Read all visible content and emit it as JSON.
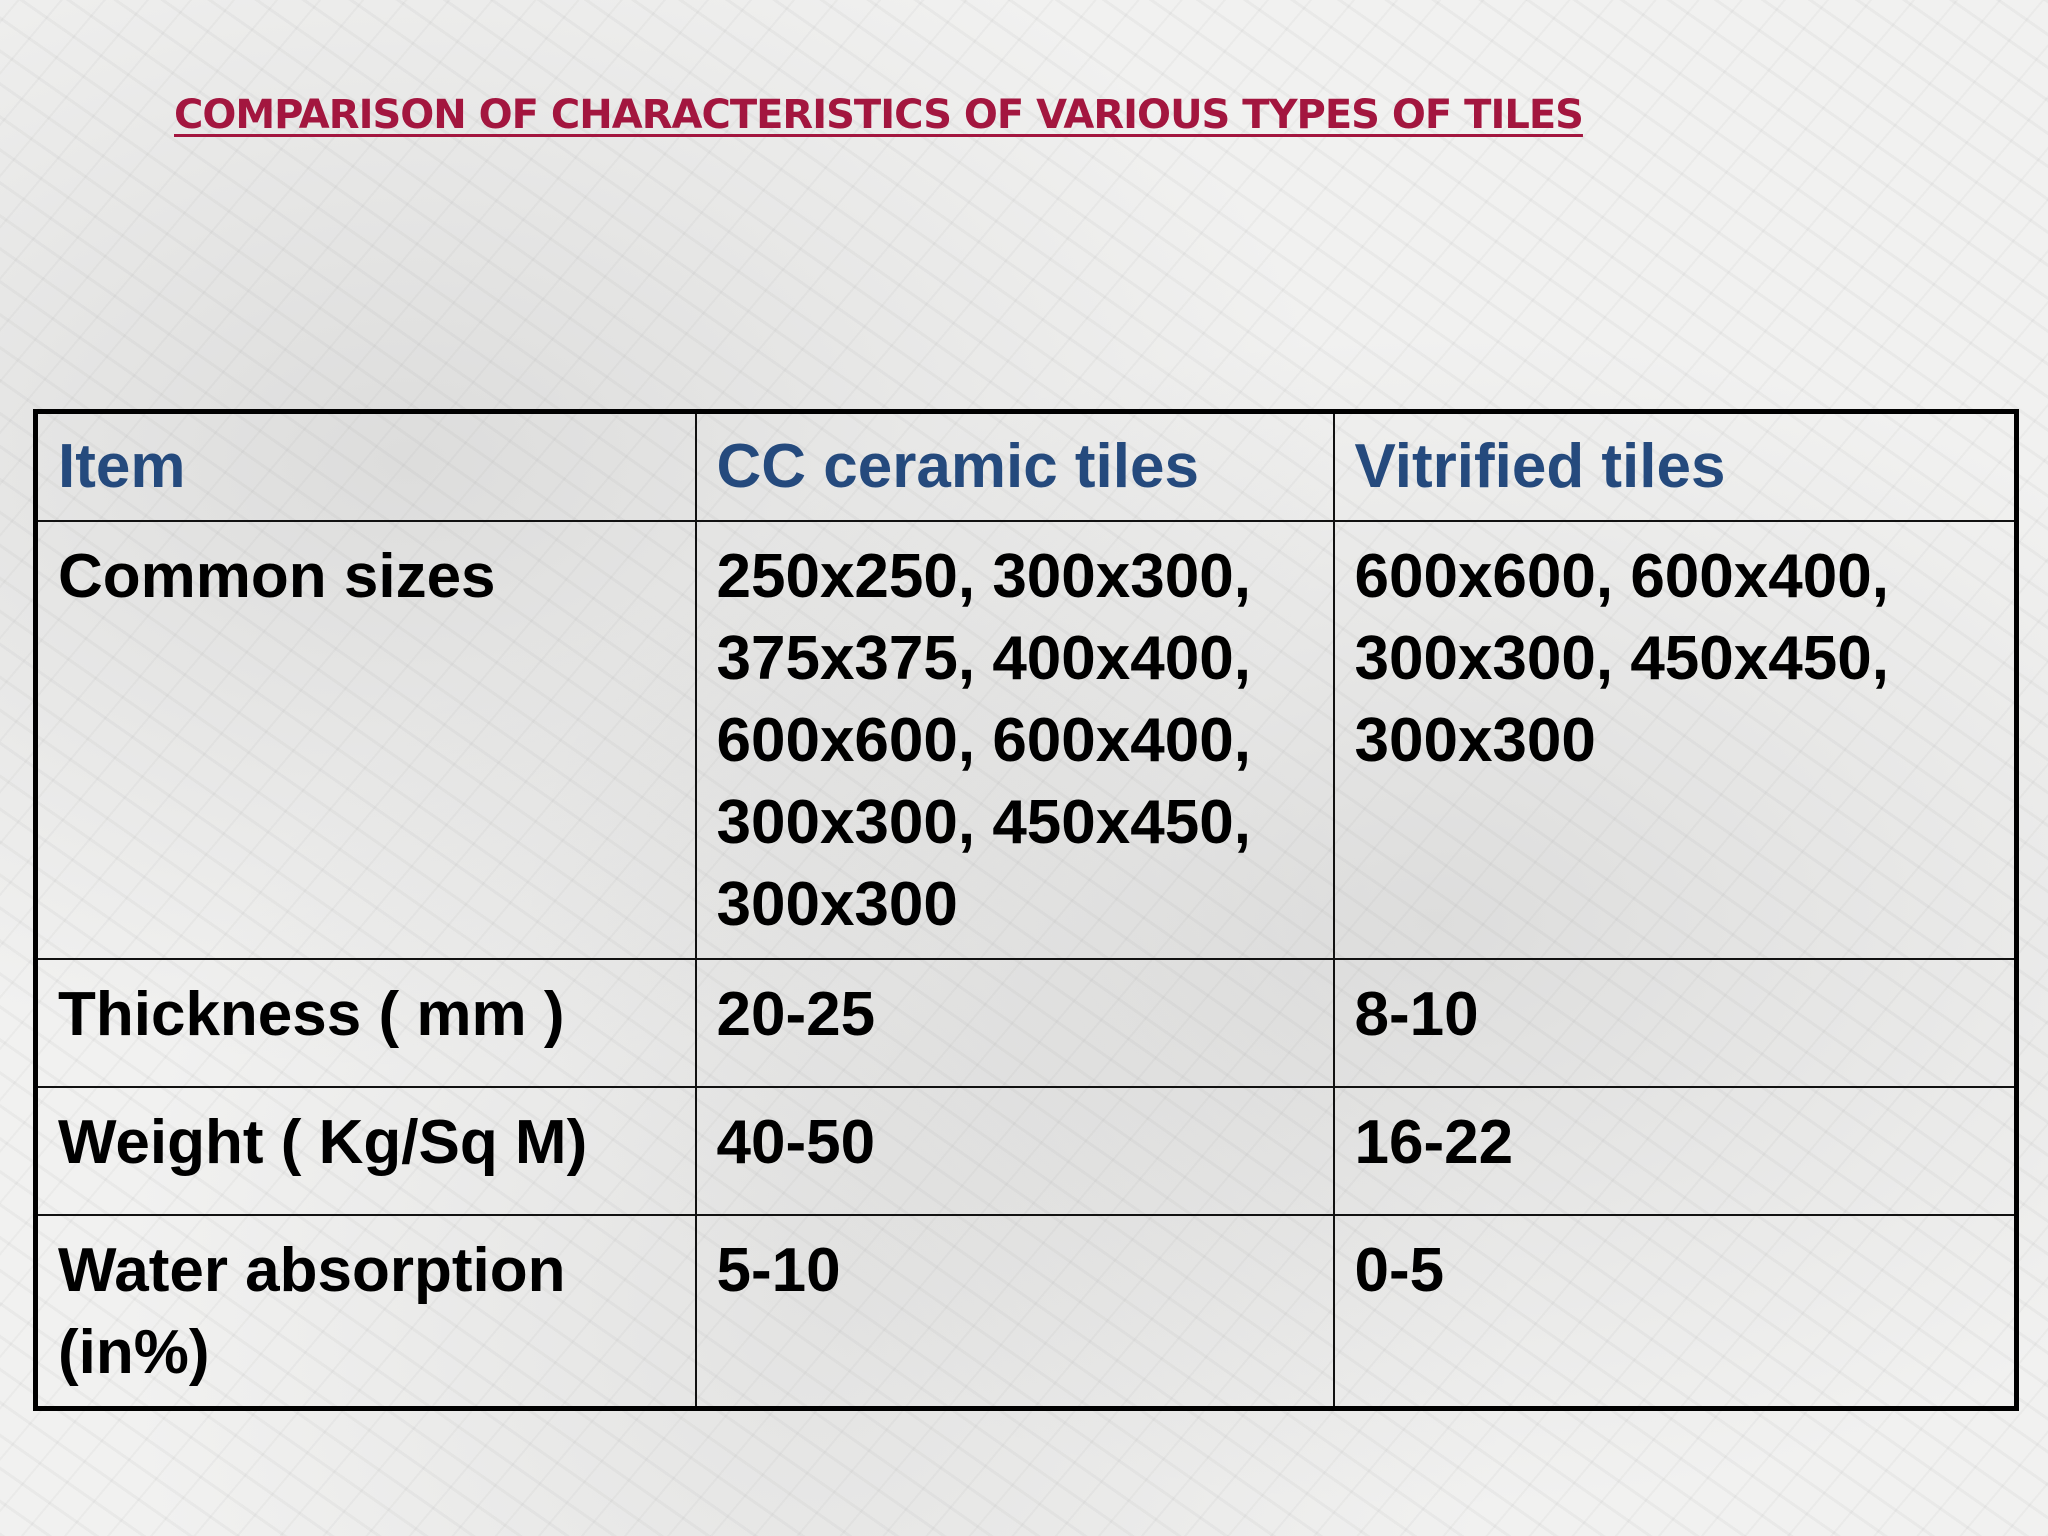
{
  "header": {
    "title": "COMPARISON OF CHARACTERISTICS OF VARIOUS TYPES OF TILES"
  },
  "table": {
    "columns": [
      "Item",
      "CC ceramic tiles",
      "Vitrified tiles"
    ],
    "rows": [
      [
        "Common sizes",
        "250x250, 300x300, 375x375, 400x400, 600x600, 600x400, 300x300, 450x450, 300x300",
        "600x600, 600x400, 300x300, 450x450, 300x300"
      ],
      [
        "Thickness ( mm )",
        "20-25",
        "8-10"
      ],
      [
        "Weight ( Kg/Sq M)",
        "40-50",
        "16-22"
      ],
      [
        "Water absorption (in%)",
        "5-10",
        "0-5"
      ]
    ]
  }
}
